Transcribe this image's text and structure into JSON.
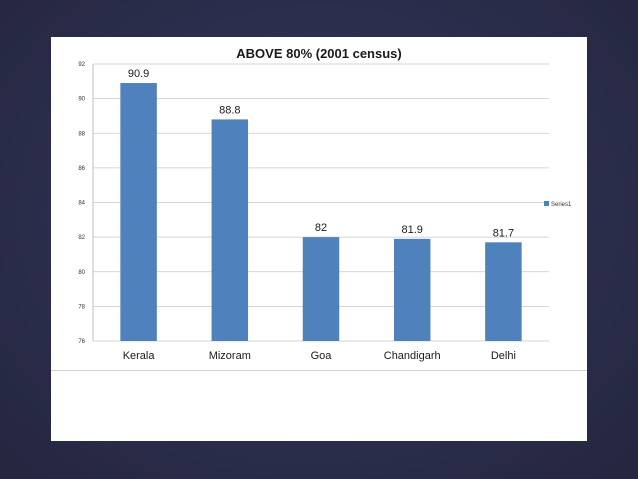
{
  "chart_data": {
    "type": "bar",
    "title": "ABOVE 80% (2001 census)",
    "categories": [
      "Kerala",
      "Mizoram",
      "Goa",
      "Chandigarh",
      "Delhi"
    ],
    "series": [
      {
        "name": "Series1",
        "values": [
          90.9,
          88.8,
          82,
          81.9,
          81.7
        ]
      }
    ],
    "data_labels": [
      "90.9",
      "88.8",
      "82",
      "81.9",
      "81.7"
    ],
    "ylim": [
      76,
      92
    ],
    "yticks": [
      76,
      78,
      80,
      82,
      84,
      86,
      88,
      90,
      92
    ],
    "grid": true,
    "legend": "right",
    "colors": {
      "bar": "#4f81bd",
      "grid": "#c8c8c8",
      "background": "#2a2c4f"
    }
  }
}
